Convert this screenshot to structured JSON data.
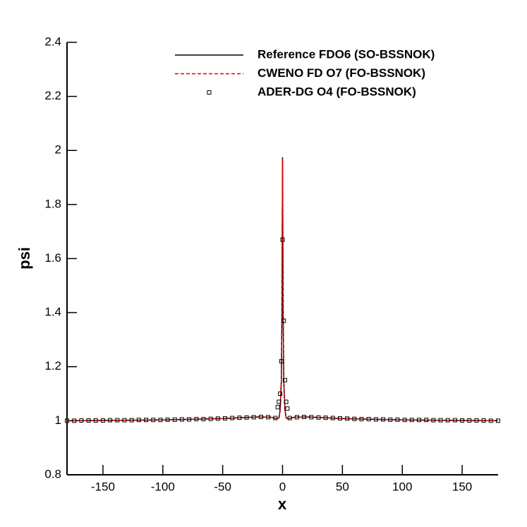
{
  "chart_data": {
    "type": "line",
    "xlabel": "x",
    "ylabel": "psi",
    "xlim": [
      -180,
      180
    ],
    "ylim": [
      0.8,
      2.4
    ],
    "xticks": [
      -150,
      -100,
      -50,
      0,
      50,
      100,
      150
    ],
    "yticks": [
      0.8,
      1,
      1.2,
      1.4,
      1.6,
      1.8,
      2,
      2.2,
      2.4
    ],
    "legend": "upper right",
    "x": [
      -180,
      -150,
      -100,
      -50,
      -30,
      -20,
      -10,
      -5,
      -3,
      -2,
      -1,
      -0.5,
      0,
      0.5,
      1,
      2,
      3,
      5,
      10,
      20,
      30,
      50,
      100,
      150,
      180
    ],
    "series": [
      {
        "name": "Reference FDO6 (SO-BSSNOK)",
        "color": "#000000",
        "style": "solid",
        "values": [
          1.0,
          1.001,
          1.003,
          1.008,
          1.012,
          1.014,
          1.013,
          1.008,
          1.01,
          1.04,
          1.15,
          1.4,
          1.975,
          1.4,
          1.15,
          1.04,
          1.01,
          1.008,
          1.013,
          1.014,
          1.012,
          1.008,
          1.003,
          1.001,
          1.0
        ]
      },
      {
        "name": "CWENO FD O7 (FO-BSSNOK)",
        "color": "#e00000",
        "style": "dashed",
        "values": [
          1.0,
          1.001,
          1.003,
          1.008,
          1.012,
          1.014,
          1.013,
          1.008,
          1.01,
          1.04,
          1.15,
          1.4,
          1.97,
          1.4,
          1.15,
          1.04,
          1.01,
          1.008,
          1.013,
          1.014,
          1.012,
          1.008,
          1.003,
          1.001,
          1.0
        ]
      },
      {
        "name": "ADER-DG O4 (FO-BSSNOK)",
        "color": "#000000",
        "style": "marker",
        "x": [
          -180,
          -174,
          -168,
          -162,
          -156,
          -150,
          -144,
          -138,
          -132,
          -126,
          -120,
          -114,
          -108,
          -102,
          -96,
          -90,
          -84,
          -78,
          -72,
          -66,
          -60,
          -54,
          -48,
          -42,
          -36,
          -30,
          -24,
          -18,
          -12,
          -6,
          -4,
          -3,
          -2,
          -1,
          0,
          1,
          2,
          3,
          4,
          6,
          12,
          18,
          24,
          30,
          36,
          42,
          48,
          54,
          60,
          66,
          72,
          78,
          84,
          90,
          96,
          102,
          108,
          114,
          120,
          126,
          132,
          138,
          144,
          150,
          156,
          162,
          168,
          174,
          180
        ],
        "values": [
          1.0,
          1.0,
          1.001,
          1.001,
          1.001,
          1.001,
          1.002,
          1.002,
          1.002,
          1.002,
          1.003,
          1.003,
          1.003,
          1.003,
          1.004,
          1.004,
          1.005,
          1.005,
          1.006,
          1.006,
          1.007,
          1.008,
          1.009,
          1.01,
          1.011,
          1.012,
          1.013,
          1.014,
          1.013,
          1.01,
          1.05,
          1.07,
          1.1,
          1.22,
          1.67,
          1.37,
          1.15,
          1.07,
          1.045,
          1.01,
          1.013,
          1.014,
          1.013,
          1.012,
          1.011,
          1.01,
          1.009,
          1.008,
          1.007,
          1.006,
          1.006,
          1.005,
          1.005,
          1.004,
          1.004,
          1.003,
          1.003,
          1.003,
          1.003,
          1.002,
          1.002,
          1.002,
          1.002,
          1.001,
          1.001,
          1.001,
          1.001,
          1.0,
          1.0
        ]
      }
    ]
  }
}
